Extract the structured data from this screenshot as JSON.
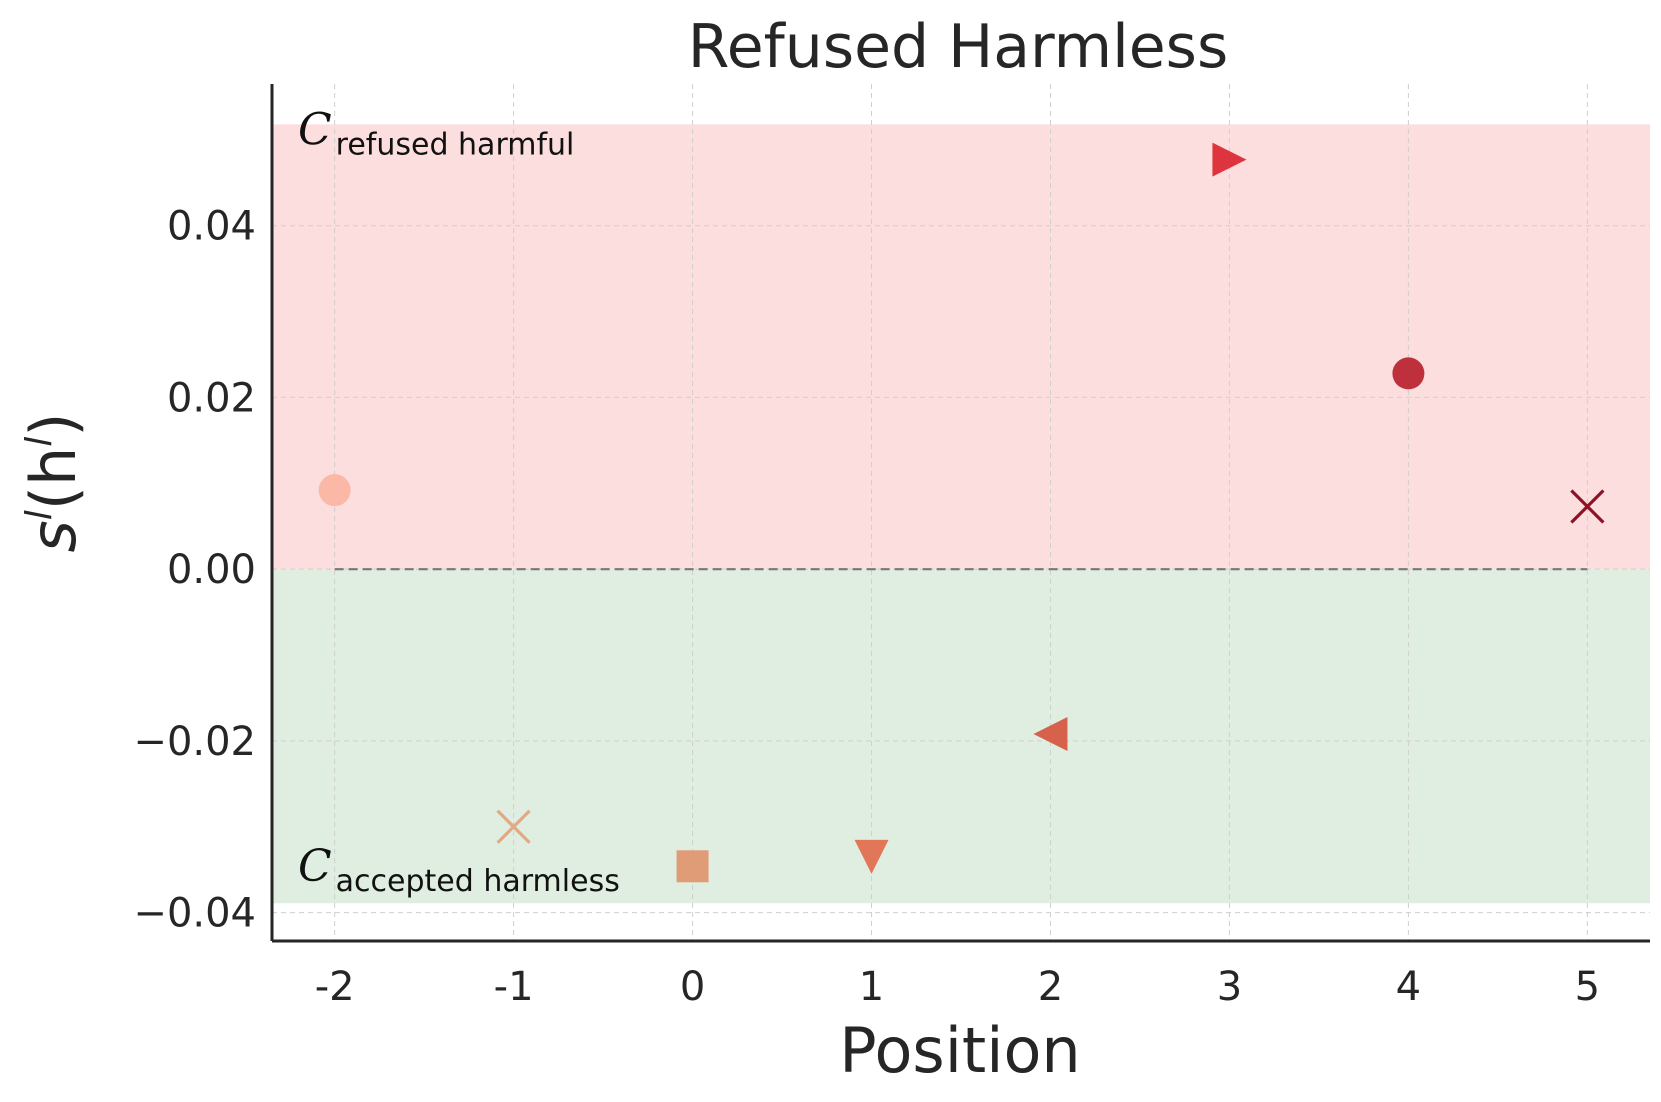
{
  "chart_data": {
    "type": "scatter",
    "title": "Refused Harmless",
    "xlabel": "Position",
    "ylabel": {
      "base": "s",
      "sup": "l",
      "arg_open": "(h",
      "arg_sup": "l",
      "arg_close": ")"
    },
    "xlim": [
      -2.35,
      5.35
    ],
    "ylim": [
      -0.0433,
      0.0565
    ],
    "x_ticks": [
      -2,
      -1,
      0,
      1,
      2,
      3,
      4,
      5
    ],
    "x_tick_labels": [
      "-2",
      "-1",
      "0",
      "1",
      "2",
      "3",
      "4",
      "5"
    ],
    "y_ticks": [
      -0.04,
      -0.02,
      0.0,
      0.02,
      0.04
    ],
    "y_tick_labels": [
      "−0.04",
      "−0.02",
      "0.00",
      "0.02",
      "0.04"
    ],
    "grid": true,
    "regions": [
      {
        "name": "refused-harmful-region",
        "y_from": 0.0,
        "y_to": 0.0518,
        "color": "#fddede",
        "label_main": "C",
        "label_sub": "refused harmful",
        "label_anchor": "top-left"
      },
      {
        "name": "accepted-harmless-region",
        "y_from": -0.0389,
        "y_to": 0.0,
        "color": "#dfeee0",
        "label_main": "C",
        "label_sub": "accepted harmless",
        "label_anchor": "bottom-left"
      }
    ],
    "reference_line": {
      "y": 0.0,
      "x_from": -2,
      "x_to": 5,
      "color": "#777777",
      "style": "dashed"
    },
    "points": [
      {
        "x": -2,
        "y": 0.0092,
        "marker": "circle",
        "color": "#fbb4a0"
      },
      {
        "x": -1,
        "y": -0.03,
        "marker": "x",
        "color": "#e5a884"
      },
      {
        "x": 0,
        "y": -0.0346,
        "marker": "square",
        "color": "#e0926c"
      },
      {
        "x": 1,
        "y": -0.0335,
        "marker": "triangle-down",
        "color": "#e07050"
      },
      {
        "x": 2,
        "y": -0.0192,
        "marker": "triangle-left",
        "color": "#d65a43"
      },
      {
        "x": 3,
        "y": 0.0477,
        "marker": "triangle-right",
        "color": "#dc2a36"
      },
      {
        "x": 4,
        "y": 0.0228,
        "marker": "circle",
        "color": "#b81d2b"
      },
      {
        "x": 5,
        "y": 0.0073,
        "marker": "x",
        "color": "#8e1226"
      }
    ]
  }
}
